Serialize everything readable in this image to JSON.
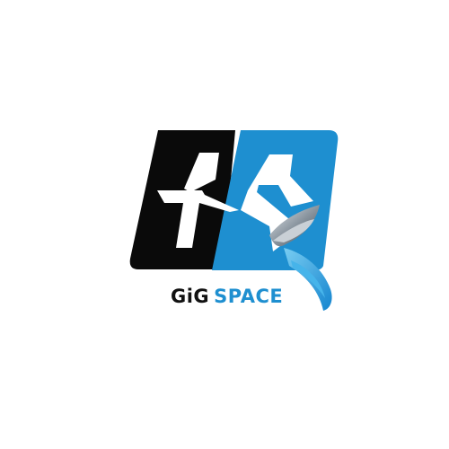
{
  "logo": {
    "icon": "gs-monogram-logo-icon",
    "wordmark_part1": "GiG",
    "wordmark_part2": "SPACE",
    "colors": {
      "black": "#0a0a0a",
      "blue": "#1e8fd0",
      "light_blue": "#46b4ea",
      "silver": "#9aa4ad"
    }
  }
}
